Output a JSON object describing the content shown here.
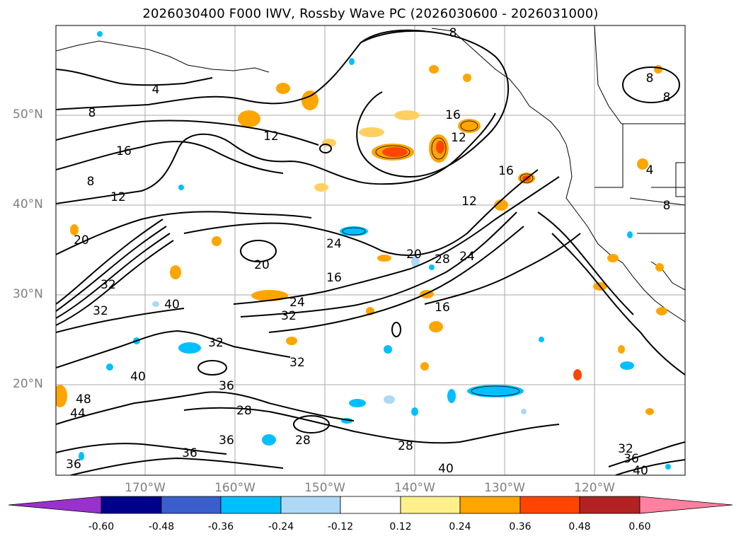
{
  "title": "2026030400 F000 IWV, Rossby Wave PC (2026030600 - 2026031000)",
  "map": {
    "lat_labels": [
      "50°N",
      "40°N",
      "30°N",
      "20°N"
    ],
    "lon_labels": [
      "170°W",
      "160°W",
      "150°W",
      "140°W",
      "130°W",
      "120°W"
    ],
    "contour_labels": [
      "4",
      "8",
      "8",
      "12",
      "16",
      "8",
      "12",
      "16",
      "12",
      "12",
      "16",
      "20",
      "24",
      "20",
      "16",
      "20",
      "28",
      "24",
      "32",
      "40",
      "32",
      "24",
      "32",
      "32",
      "32",
      "36",
      "16",
      "40",
      "48",
      "44",
      "28",
      "36",
      "36",
      "28",
      "28",
      "36",
      "40",
      "32",
      "36",
      "40",
      "8",
      "8",
      "4",
      "8"
    ]
  },
  "colorbar": {
    "tick_labels": [
      "-0.60",
      "-0.48",
      "-0.36",
      "-0.24",
      "-0.12",
      "0.12",
      "0.24",
      "0.36",
      "0.48",
      "0.60"
    ],
    "colors": [
      "#9932cc",
      "#00008b",
      "#3a5fcd",
      "#00bfff",
      "#add8f6",
      "#ffffff",
      "#fff08c",
      "#ffa500",
      "#ff4500",
      "#b22222",
      "#ff80a0"
    ]
  }
}
